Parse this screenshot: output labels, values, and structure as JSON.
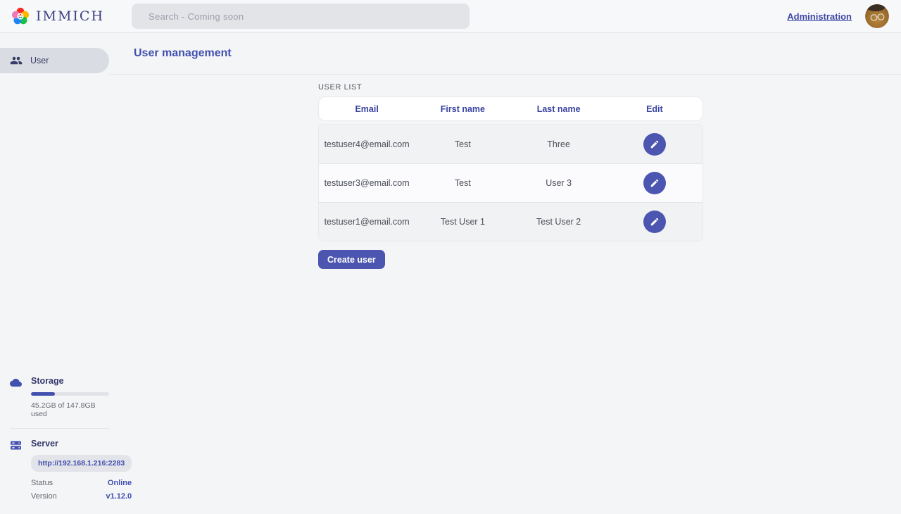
{
  "header": {
    "logo_text": "IMMICH",
    "search_placeholder": "Search - Coming soon",
    "administration_label": "Administration"
  },
  "sidebar": {
    "nav": {
      "user_label": "User"
    },
    "storage": {
      "title": "Storage",
      "usage_text": "45.2GB of 147.8GB used",
      "percent_used": 31
    },
    "server": {
      "title": "Server",
      "url": "http://192.168.1.216:2283",
      "status_label": "Status",
      "status_value": "Online",
      "version_label": "Version",
      "version_value": "v1.12.0"
    }
  },
  "main": {
    "page_title": "User management",
    "section_label": "USER LIST",
    "table": {
      "columns": [
        "Email",
        "First name",
        "Last name",
        "Edit"
      ],
      "rows": [
        {
          "email": "testuser4@email.com",
          "first_name": "Test",
          "last_name": "Three"
        },
        {
          "email": "testuser3@email.com",
          "first_name": "Test",
          "last_name": "User 3"
        },
        {
          "email": "testuser1@email.com",
          "first_name": "Test User 1",
          "last_name": "Test User 2"
        }
      ]
    },
    "create_button_label": "Create user"
  },
  "colors": {
    "accent": "#4250af",
    "button": "#4c56b0",
    "status_online": "#4250af"
  }
}
